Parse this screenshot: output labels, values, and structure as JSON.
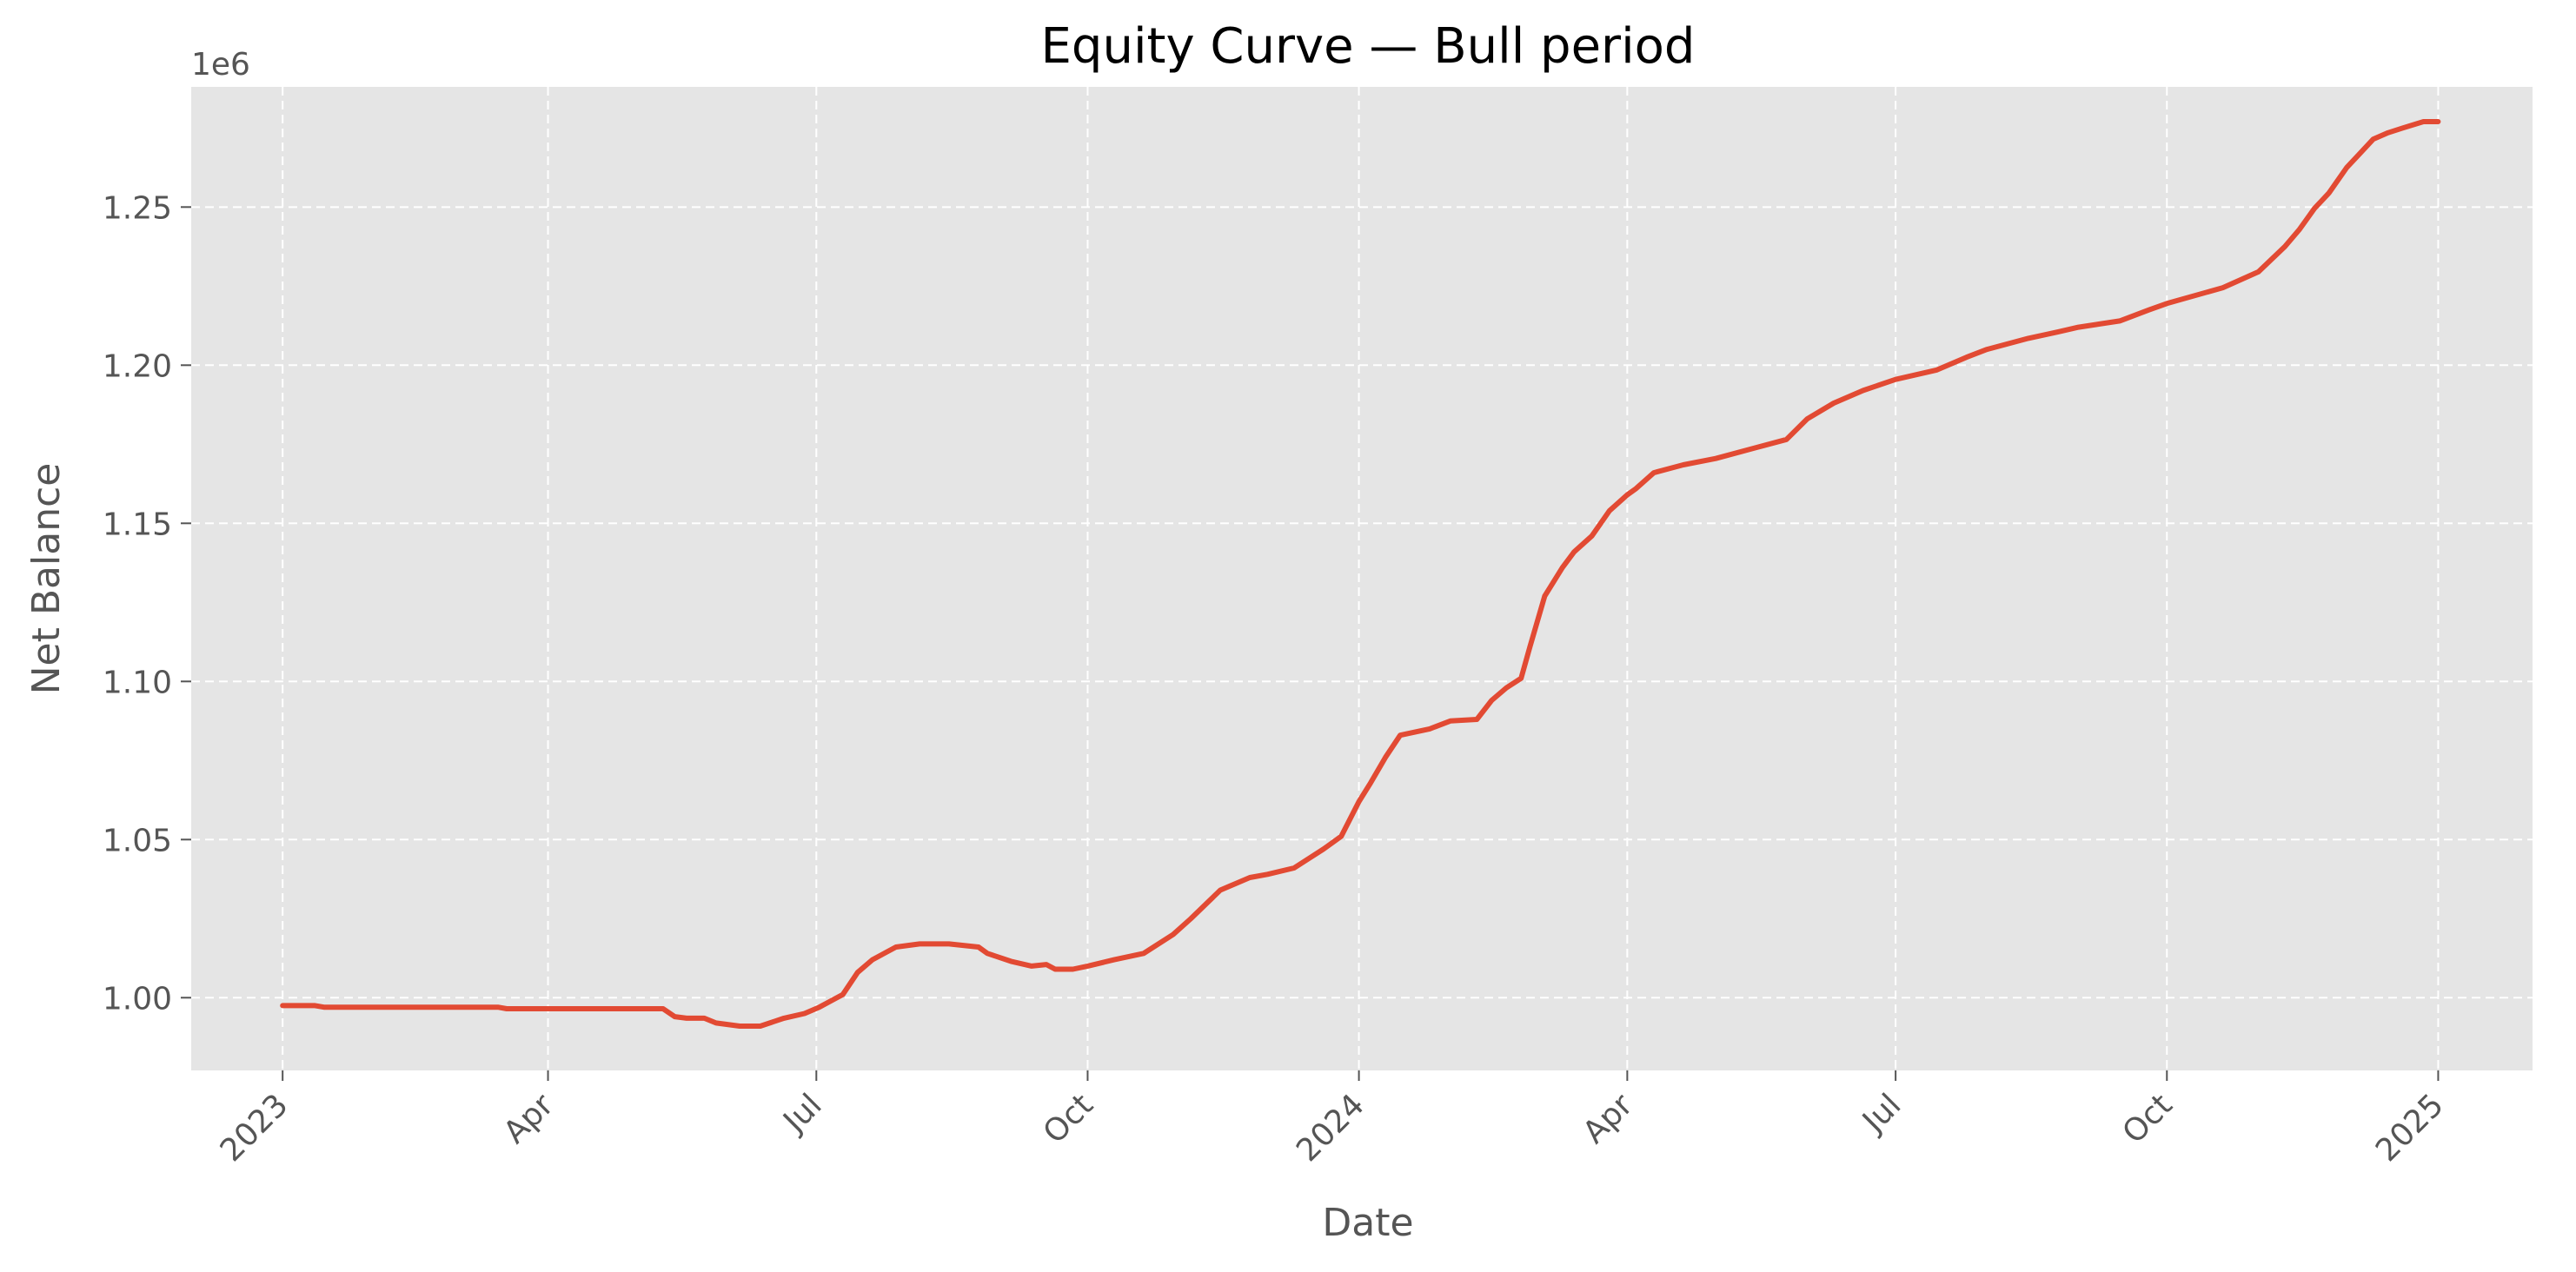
{
  "chart_data": {
    "type": "line",
    "title": "Equity Curve — Bull period",
    "xlabel": "Date",
    "ylabel": "Net Balance",
    "y_offset_label": "1e6",
    "grid": true,
    "legend": "none",
    "xlim": [
      "2022-12-01",
      "2025-02-02"
    ],
    "ylim": [
      0.977,
      1.288
    ],
    "x_ticks": [
      {
        "date": "2023-01-01",
        "label": "2023"
      },
      {
        "date": "2023-04-01",
        "label": "Apr"
      },
      {
        "date": "2023-07-01",
        "label": "Jul"
      },
      {
        "date": "2023-10-01",
        "label": "Oct"
      },
      {
        "date": "2024-01-01",
        "label": "2024"
      },
      {
        "date": "2024-04-01",
        "label": "Apr"
      },
      {
        "date": "2024-07-01",
        "label": "Jul"
      },
      {
        "date": "2024-10-01",
        "label": "Oct"
      },
      {
        "date": "2025-01-01",
        "label": "2025"
      }
    ],
    "y_ticks": [
      {
        "value": 1.0,
        "label": "1.00"
      },
      {
        "value": 1.05,
        "label": "1.05"
      },
      {
        "value": 1.1,
        "label": "1.10"
      },
      {
        "value": 1.15,
        "label": "1.15"
      },
      {
        "value": 1.2,
        "label": "1.20"
      },
      {
        "value": 1.25,
        "label": "1.25"
      }
    ],
    "colors": {
      "background": "#e5e5e5",
      "grid": "#ffffff",
      "line": "#e24a33",
      "text": "#555555"
    },
    "series": [
      {
        "x": [
          "2023-01-01",
          "2023-01-12",
          "2023-01-15",
          "2023-02-01",
          "2023-02-15",
          "2023-03-01",
          "2023-03-15",
          "2023-03-18",
          "2023-04-01",
          "2023-04-15",
          "2023-05-01",
          "2023-05-10",
          "2023-05-14",
          "2023-05-18",
          "2023-05-24",
          "2023-05-28",
          "2023-06-05",
          "2023-06-12",
          "2023-06-20",
          "2023-06-27",
          "2023-07-02",
          "2023-07-06",
          "2023-07-10",
          "2023-07-15",
          "2023-07-20",
          "2023-07-28",
          "2023-08-05",
          "2023-08-15",
          "2023-08-25",
          "2023-08-28",
          "2023-09-05",
          "2023-09-12",
          "2023-09-17",
          "2023-09-20",
          "2023-09-26",
          "2023-10-01",
          "2023-10-10",
          "2023-10-20",
          "2023-10-30",
          "2023-11-05",
          "2023-11-15",
          "2023-11-20",
          "2023-11-25",
          "2023-12-01",
          "2023-12-10",
          "2023-12-15",
          "2023-12-20",
          "2023-12-26",
          "2024-01-01",
          "2024-01-05",
          "2024-01-10",
          "2024-01-15",
          "2024-01-25",
          "2024-02-01",
          "2024-02-10",
          "2024-02-15",
          "2024-02-20",
          "2024-02-25",
          "2024-02-28",
          "2024-03-04",
          "2024-03-10",
          "2024-03-14",
          "2024-03-20",
          "2024-03-26",
          "2024-04-01",
          "2024-04-04",
          "2024-04-10",
          "2024-04-20",
          "2024-05-01",
          "2024-05-15",
          "2024-05-25",
          "2024-06-01",
          "2024-06-10",
          "2024-06-20",
          "2024-07-01",
          "2024-07-15",
          "2024-07-25",
          "2024-08-01",
          "2024-08-15",
          "2024-08-25",
          "2024-09-01",
          "2024-09-15",
          "2024-09-25",
          "2024-10-01",
          "2024-10-20",
          "2024-11-01",
          "2024-11-10",
          "2024-11-15",
          "2024-11-20",
          "2024-11-25",
          "2024-12-01",
          "2024-12-05",
          "2024-12-10",
          "2024-12-15",
          "2024-12-20",
          "2024-12-27",
          "2025-01-01"
        ],
        "y": [
          0.9975,
          0.9975,
          0.997,
          0.997,
          0.997,
          0.997,
          0.997,
          0.9965,
          0.9965,
          0.9965,
          0.9965,
          0.9965,
          0.994,
          0.9935,
          0.9935,
          0.992,
          0.991,
          0.991,
          0.9935,
          0.995,
          0.997,
          0.999,
          1.001,
          1.008,
          1.012,
          1.016,
          1.017,
          1.017,
          1.016,
          1.014,
          1.0115,
          1.01,
          1.0105,
          1.009,
          1.009,
          1.01,
          1.012,
          1.014,
          1.02,
          1.025,
          1.034,
          1.036,
          1.038,
          1.039,
          1.041,
          1.044,
          1.047,
          1.051,
          1.062,
          1.068,
          1.076,
          1.083,
          1.085,
          1.0875,
          1.088,
          1.094,
          1.098,
          1.101,
          1.111,
          1.127,
          1.136,
          1.141,
          1.146,
          1.154,
          1.159,
          1.161,
          1.166,
          1.1685,
          1.1705,
          1.174,
          1.1765,
          1.183,
          1.188,
          1.192,
          1.1955,
          1.1985,
          1.2025,
          1.205,
          1.2085,
          1.2105,
          1.212,
          1.214,
          1.2175,
          1.2195,
          1.2245,
          1.2295,
          1.2375,
          1.243,
          1.2495,
          1.2545,
          1.2625,
          1.2665,
          1.2715,
          1.2735,
          1.275,
          1.277,
          1.277
        ]
      }
    ]
  }
}
